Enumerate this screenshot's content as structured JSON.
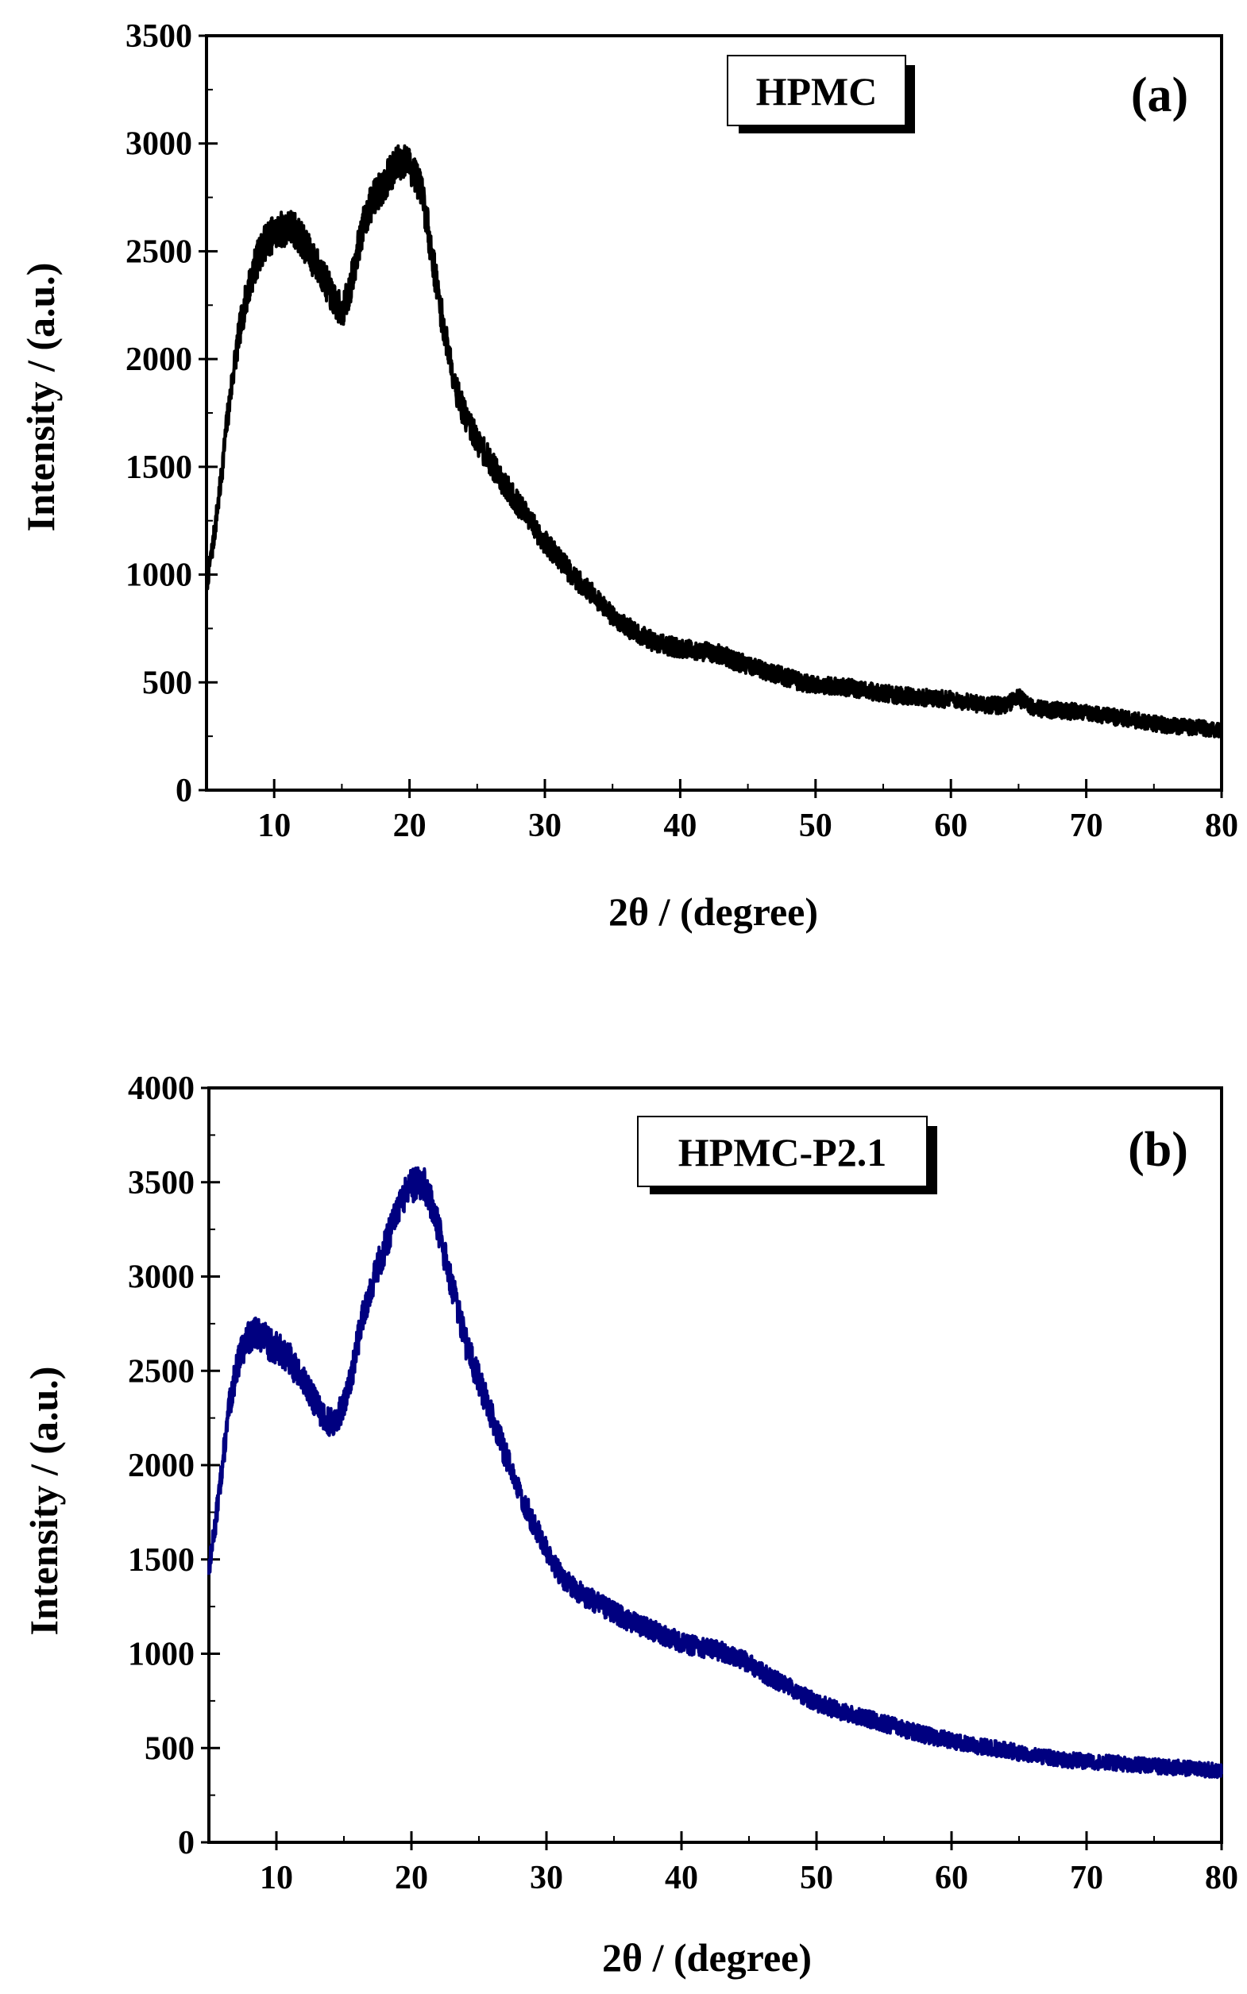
{
  "chart_data": [
    {
      "type": "line",
      "panel_label": "(a)",
      "legend": "HPMC",
      "xlabel": "2θ / (degree)",
      "ylabel": "Intensity / (a.u.)",
      "xlim": [
        5,
        80
      ],
      "ylim": [
        0,
        3500
      ],
      "xticks": [
        10,
        20,
        30,
        40,
        50,
        60,
        70,
        80
      ],
      "yticks": [
        0,
        500,
        1000,
        1500,
        2000,
        2500,
        3000,
        3500
      ],
      "color": "#000000",
      "noise": 85,
      "x": [
        5,
        5.5,
        6,
        6.5,
        7,
        7.5,
        8,
        8.5,
        9,
        9.5,
        10,
        10.5,
        11,
        11.5,
        12,
        12.5,
        13,
        13.5,
        14,
        14.5,
        15,
        15.5,
        16,
        16.5,
        17,
        17.5,
        18,
        18.5,
        19,
        19.5,
        20,
        20.5,
        21,
        21.5,
        22,
        22.5,
        23,
        23.5,
        24,
        25,
        26,
        27,
        28,
        29,
        30,
        31,
        32,
        33,
        34,
        35,
        36,
        37,
        38,
        39,
        40,
        41,
        42,
        43,
        44,
        45,
        46,
        47,
        48,
        49,
        50,
        52,
        54,
        56,
        58,
        60,
        62,
        64,
        65,
        66,
        68,
        70,
        72,
        74,
        76,
        78,
        80
      ],
      "y": [
        950,
        1150,
        1400,
        1700,
        1950,
        2150,
        2300,
        2420,
        2500,
        2560,
        2580,
        2600,
        2610,
        2600,
        2560,
        2500,
        2450,
        2400,
        2330,
        2260,
        2220,
        2300,
        2450,
        2600,
        2700,
        2760,
        2800,
        2850,
        2900,
        2920,
        2900,
        2850,
        2750,
        2550,
        2350,
        2150,
        2000,
        1850,
        1750,
        1620,
        1520,
        1420,
        1330,
        1240,
        1150,
        1080,
        1000,
        940,
        880,
        810,
        760,
        720,
        690,
        670,
        660,
        650,
        640,
        630,
        600,
        580,
        560,
        540,
        520,
        500,
        490,
        480,
        460,
        440,
        430,
        420,
        400,
        390,
        430,
        380,
        370,
        360,
        340,
        320,
        300,
        290,
        280
      ]
    },
    {
      "type": "line",
      "panel_label": "(b)",
      "legend": "HPMC-P2.1",
      "xlabel": "2θ / (degree)",
      "ylabel": "Intensity / (a.u.)",
      "xlim": [
        5,
        80
      ],
      "ylim": [
        0,
        4000
      ],
      "xticks": [
        10,
        20,
        30,
        40,
        50,
        60,
        70,
        80
      ],
      "yticks": [
        0,
        500,
        1000,
        1500,
        2000,
        2500,
        3000,
        3500,
        4000
      ],
      "color": "#000080",
      "noise": 90,
      "x": [
        5,
        5.5,
        6,
        6.5,
        7,
        7.5,
        8,
        8.5,
        9,
        9.5,
        10,
        10.5,
        11,
        11.5,
        12,
        12.5,
        13,
        13.5,
        14,
        14.5,
        15,
        15.5,
        16,
        16.5,
        17,
        17.5,
        18,
        18.5,
        19,
        19.5,
        20,
        20.5,
        21,
        21.5,
        22,
        22.5,
        23,
        23.5,
        24,
        24.5,
        25,
        26,
        27,
        28,
        29,
        30,
        31,
        32,
        33,
        34,
        35,
        36,
        37,
        38,
        39,
        40,
        41,
        42,
        43,
        44,
        45,
        46,
        47,
        48,
        49,
        50,
        52,
        54,
        56,
        58,
        60,
        62,
        64,
        66,
        68,
        70,
        72,
        74,
        76,
        78,
        80
      ],
      "y": [
        1450,
        1700,
        2000,
        2300,
        2500,
        2620,
        2680,
        2700,
        2680,
        2640,
        2620,
        2600,
        2560,
        2500,
        2440,
        2380,
        2320,
        2260,
        2220,
        2250,
        2320,
        2450,
        2650,
        2820,
        2950,
        3050,
        3150,
        3250,
        3350,
        3430,
        3480,
        3500,
        3480,
        3380,
        3250,
        3100,
        2950,
        2800,
        2650,
        2550,
        2450,
        2250,
        2050,
        1850,
        1700,
        1550,
        1420,
        1350,
        1300,
        1260,
        1220,
        1180,
        1150,
        1120,
        1090,
        1060,
        1040,
        1030,
        1010,
        980,
        950,
        900,
        860,
        820,
        780,
        740,
        690,
        650,
        610,
        570,
        540,
        510,
        490,
        460,
        440,
        430,
        420,
        410,
        400,
        390,
        380
      ]
    }
  ]
}
